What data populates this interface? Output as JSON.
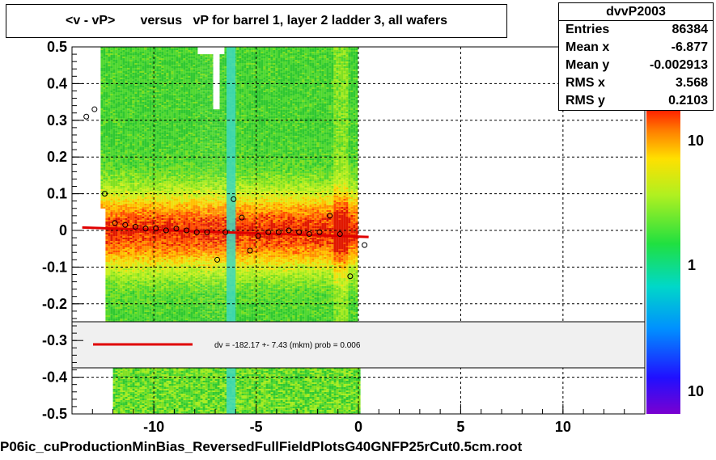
{
  "title": "<v - vP>       versus   vP for barrel 1, layer 2 ladder 3, all wafers",
  "footer": "P06ic_cuProductionMinBias_ReversedFullFieldPlotsG40GNFP25rCut0.5cm.root",
  "stats": {
    "name": "dvvP2003",
    "rows": [
      {
        "label": "Entries",
        "value": "86384"
      },
      {
        "label": "Mean x",
        "value": "-6.877"
      },
      {
        "label": "Mean y",
        "value": "-0.002913"
      },
      {
        "label": "RMS x",
        "value": "3.568"
      },
      {
        "label": "RMS y",
        "value": "0.2103"
      }
    ]
  },
  "fit_label": "dv = -182.17 +-  7.43 (mkm) prob = 0.006",
  "colors": {
    "fit": "#e00000",
    "profile_marker": "#000000"
  },
  "chart_data": {
    "type": "heatmap",
    "xlim": [
      -14,
      14
    ],
    "ylim": [
      -0.5,
      0.5
    ],
    "x_ticks": [
      -10,
      -5,
      0,
      5,
      10
    ],
    "y_ticks": [
      -0.5,
      -0.4,
      -0.3,
      -0.2,
      -0.1,
      0,
      0.1,
      0.2,
      0.3,
      0.4,
      0.5
    ],
    "x_tick_labels": [
      "-10",
      "-5",
      "0",
      "5",
      "10"
    ],
    "y_tick_labels": [
      "-0.5",
      "-0.4",
      "-0.3",
      "-0.2",
      "-0.1",
      "0",
      "0.1",
      "0.2",
      "0.3",
      "0.4",
      "0.5"
    ],
    "grid": true,
    "colorbar": {
      "scale": "log",
      "tick_labels": [
        "10",
        "1",
        "10"
      ]
    },
    "fit_line": {
      "x": [
        -13.5,
        0.5
      ],
      "y": [
        0.008,
        -0.018
      ]
    },
    "profile": {
      "x": [
        -13.3,
        -12.9,
        -12.4,
        -11.9,
        -11.4,
        -10.9,
        -10.4,
        -9.9,
        -9.4,
        -8.9,
        -8.4,
        -7.9,
        -7.4,
        -6.9,
        -6.5,
        -6.1,
        -5.7,
        -5.3,
        -4.9,
        -4.4,
        -3.9,
        -3.4,
        -2.9,
        -2.4,
        -1.9,
        -1.4,
        -0.9,
        -0.4,
        0.3
      ],
      "y": [
        0.31,
        0.33,
        0.1,
        0.02,
        0.015,
        0.01,
        0.005,
        0.005,
        0.0,
        0.005,
        0.0,
        -0.005,
        -0.005,
        -0.08,
        -0.005,
        0.085,
        0.035,
        -0.055,
        -0.015,
        -0.005,
        -0.005,
        0.0,
        -0.005,
        -0.01,
        -0.005,
        0.04,
        -0.01,
        -0.125,
        -0.04
      ]
    }
  }
}
